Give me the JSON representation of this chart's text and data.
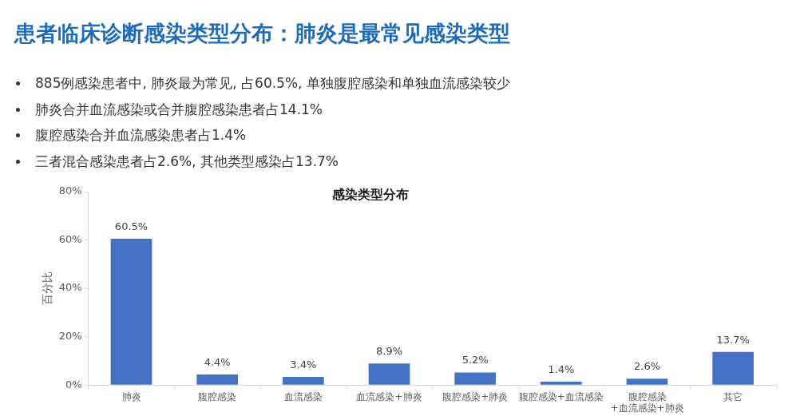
{
  "chart_data": {
    "type": "bar",
    "title": "患者临床诊断感染类型分布：肺炎是最常见感染类型",
    "subtitle": "感染类型分布",
    "ylabel": "百分比",
    "annotations": [
      "885例感染患者中, 肺炎最为常见, 占60.5%, 单独腹腔感染和单独血流感染较少",
      "肺炎合并血流感染或合并腹腔感染患者占14.1%",
      "腹腔感染合并血流感染患者占1.4%",
      "三者混合感染患者占2.6%, 其他类型感染占13.7%"
    ],
    "categories": [
      "肺炎",
      "腹腔感染",
      "血流感染",
      "血流感染+肺炎",
      "腹腔感染+肺炎",
      "腹腔感染+血流感染",
      "腹腔感染\n+血流感染+肺炎",
      "其它"
    ],
    "values": [
      60.5,
      4.4,
      3.4,
      8.9,
      5.2,
      1.4,
      2.6,
      13.7
    ],
    "color": "#4472c4",
    "value_labels": [
      "60.5%",
      "4.4%",
      "3.4%",
      "8.9%",
      "5.2%",
      "1.4%",
      "2.6%",
      "13.7%"
    ],
    "ylim": [
      0,
      80
    ],
    "yticks": [
      {
        "value": 0,
        "label": "0%"
      },
      {
        "value": 20,
        "label": "20%"
      },
      {
        "value": 40,
        "label": "40%"
      },
      {
        "value": 60,
        "label": "60%"
      },
      {
        "value": 80,
        "label": "80%"
      }
    ],
    "grid": false
  }
}
